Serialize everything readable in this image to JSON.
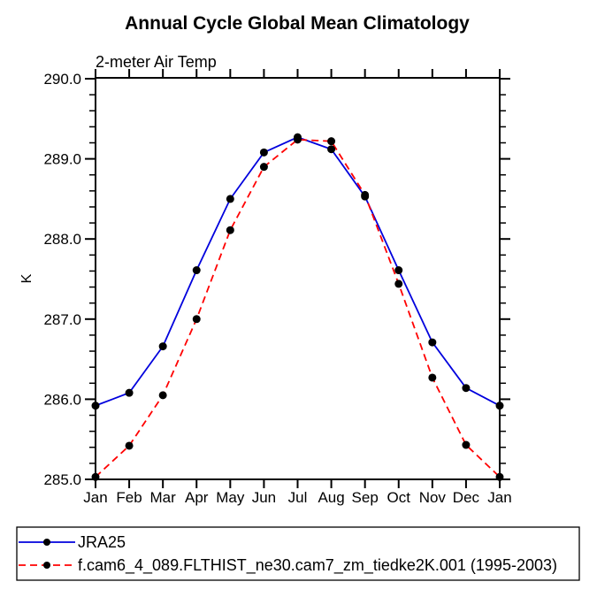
{
  "title": "Annual Cycle Global Mean Climatology",
  "subtitle": "2-meter Air Temp",
  "chart_data": {
    "type": "line",
    "x_categories": [
      "Jan",
      "Feb",
      "Mar",
      "Apr",
      "May",
      "Jun",
      "Jul",
      "Aug",
      "Sep",
      "Oct",
      "Nov",
      "Dec",
      "Jan"
    ],
    "ylabel": "K",
    "ylim": [
      285.0,
      290.0
    ],
    "ytick_interval": 1.0,
    "ytick_minor_interval": 0.2,
    "ytick_labels": [
      "285.0",
      "286.0",
      "287.0",
      "288.0",
      "289.0",
      "290.0"
    ],
    "grid": false,
    "legend_position": "boxed-below-plot",
    "axis_color": "#000000",
    "marker_color": "#000000",
    "series": [
      {
        "name": "JRA25",
        "color": "#0000dd",
        "line_style": "solid",
        "marker": "circle",
        "values": [
          285.92,
          286.08,
          286.66,
          287.61,
          288.5,
          289.08,
          289.27,
          289.12,
          288.53,
          287.61,
          286.71,
          286.14,
          285.92
        ]
      },
      {
        "name": "f.cam6_4_089.FLTHIST_ne30.cam7_zm_tiedke2K.001 (1995-2003)",
        "color": "#ff0000",
        "line_style": "dashed",
        "marker": "circle",
        "values": [
          285.03,
          285.42,
          286.05,
          287.0,
          288.11,
          288.9,
          289.24,
          289.22,
          288.55,
          287.44,
          286.27,
          285.43,
          285.03
        ]
      }
    ]
  }
}
